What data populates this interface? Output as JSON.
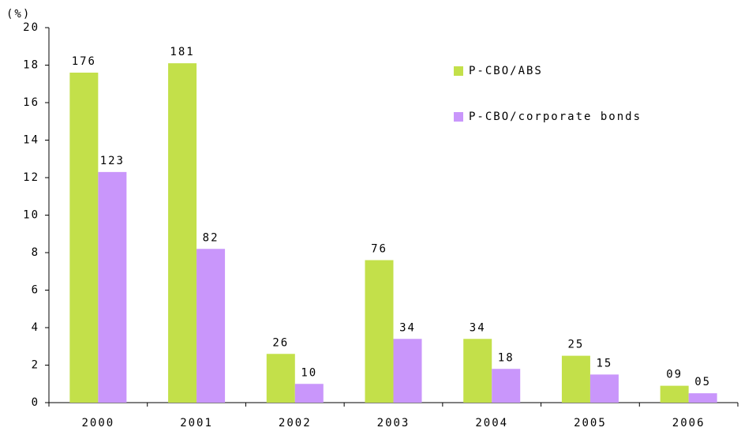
{
  "chart_data": {
    "type": "bar",
    "y_axis_label": "(%)",
    "categories": [
      "2000",
      "2001",
      "2002",
      "2003",
      "2004",
      "2005",
      "2006"
    ],
    "series": [
      {
        "name": "P-CBO/ABS",
        "color": "#c3e04a",
        "values": [
          17.6,
          18.1,
          2.6,
          7.6,
          3.4,
          2.5,
          0.9
        ],
        "value_labels": [
          "176",
          "181",
          "26",
          "76",
          "34",
          "25",
          "09"
        ]
      },
      {
        "name": "P-CBO/corporate bonds",
        "color": "#c996fb",
        "values": [
          12.3,
          8.2,
          1.0,
          3.4,
          1.8,
          1.5,
          0.5
        ],
        "value_labels": [
          "123",
          "82",
          "10",
          "34",
          "18",
          "15",
          "05"
        ]
      }
    ],
    "ylim": [
      0,
      20
    ],
    "yticks": [
      0,
      2,
      4,
      6,
      8,
      10,
      12,
      14,
      16,
      18,
      20
    ],
    "grid": false
  }
}
